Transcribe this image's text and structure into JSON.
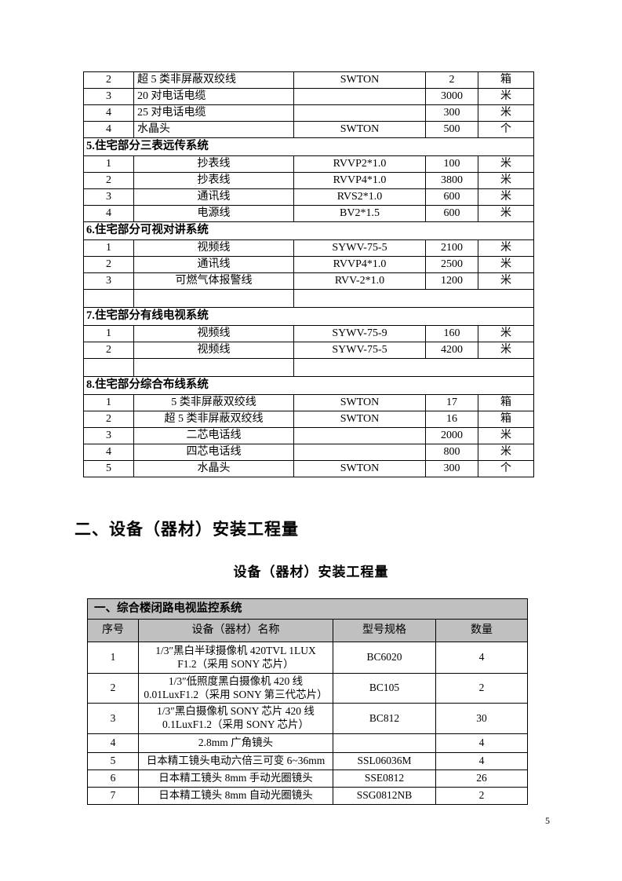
{
  "page": {
    "number": "5"
  },
  "headings": {
    "main": "二、设备（器材）安装工程量",
    "caption": "设备（器材）安装工程量"
  },
  "table1": {
    "rows": [
      {
        "type": "data",
        "align": "left",
        "no": "2",
        "name": "超 5 类非屏蔽双绞线",
        "model": "SWTON",
        "qty": "2",
        "unit": "箱"
      },
      {
        "type": "data",
        "align": "left",
        "no": "3",
        "name": "20 对电话电缆",
        "model": "",
        "qty": "3000",
        "unit": "米"
      },
      {
        "type": "data",
        "align": "left",
        "no": "4",
        "name": "25 对电话电缆",
        "model": "",
        "qty": "300",
        "unit": "米"
      },
      {
        "type": "data",
        "align": "left",
        "no": "4",
        "name": "水晶头",
        "model": "SWTON",
        "qty": "500",
        "unit": "个"
      },
      {
        "type": "section",
        "label": "5.住宅部分三表远传系统"
      },
      {
        "type": "data",
        "align": "center",
        "no": "1",
        "name": "抄表线",
        "model": "RVVP2*1.0",
        "qty": "100",
        "unit": "米"
      },
      {
        "type": "data",
        "align": "center",
        "no": "2",
        "name": "抄表线",
        "model": "RVVP4*1.0",
        "qty": "3800",
        "unit": "米"
      },
      {
        "type": "data",
        "align": "center",
        "no": "3",
        "name": "通讯线",
        "model": "RVS2*1.0",
        "qty": "600",
        "unit": "米"
      },
      {
        "type": "data",
        "align": "center",
        "no": "4",
        "name": "电源线",
        "model": "BV2*1.5",
        "qty": "600",
        "unit": "米"
      },
      {
        "type": "section",
        "label": "6.住宅部分可视对讲系统"
      },
      {
        "type": "data",
        "align": "center",
        "no": "1",
        "name": "视频线",
        "model": "SYWV-75-5",
        "qty": "2100",
        "unit": "米"
      },
      {
        "type": "data",
        "align": "center",
        "no": "2",
        "name": "通讯线",
        "model": "RVVP4*1.0",
        "qty": "2500",
        "unit": "米"
      },
      {
        "type": "data",
        "align": "center",
        "no": "3",
        "name": "可燃气体报警线",
        "model": "RVV-2*1.0",
        "qty": "1200",
        "unit": "米"
      },
      {
        "type": "empty"
      },
      {
        "type": "section",
        "label": "7.住宅部分有线电视系统"
      },
      {
        "type": "data",
        "align": "center",
        "no": "1",
        "name": "视频线",
        "model": "SYWV-75-9",
        "qty": "160",
        "unit": "米"
      },
      {
        "type": "data",
        "align": "center",
        "no": "2",
        "name": "视频线",
        "model": "SYWV-75-5",
        "qty": "4200",
        "unit": "米"
      },
      {
        "type": "empty"
      },
      {
        "type": "section",
        "label": "8.住宅部分综合布线系统"
      },
      {
        "type": "data",
        "align": "center",
        "no": "1",
        "name": "5 类非屏蔽双绞线",
        "model": "SWTON",
        "qty": "17",
        "unit": "箱"
      },
      {
        "type": "data",
        "align": "center",
        "no": "2",
        "name": "超 5 类非屏蔽双绞线",
        "model": "SWTON",
        "qty": "16",
        "unit": "箱"
      },
      {
        "type": "data",
        "align": "center",
        "no": "3",
        "name": "二芯电话线",
        "model": "",
        "qty": "2000",
        "unit": "米"
      },
      {
        "type": "data",
        "align": "center",
        "no": "4",
        "name": "四芯电话线",
        "model": "",
        "qty": "800",
        "unit": "米"
      },
      {
        "type": "data",
        "align": "center",
        "no": "5",
        "name": "水晶头",
        "model": "SWTON",
        "qty": "300",
        "unit": "个"
      }
    ]
  },
  "table2": {
    "title": "一、综合楼闭路电视监控系统",
    "columns": [
      "序号",
      "设备（器材）名称",
      "型号规格",
      "数量"
    ],
    "rows": [
      {
        "no": "1",
        "name": "1/3″黑白半球摄像机 420TVL 1LUX\nF1.2（采用 SONY 芯片）",
        "model": "BC6020",
        "qty": "4"
      },
      {
        "no": "2",
        "name": "1/3″低照度黑白摄像机 420 线\n0.01LuxF1.2（采用 SONY 第三代芯片）",
        "model": "BC105",
        "qty": "2"
      },
      {
        "no": "3",
        "name": "1/3″黑白摄像机 SONY 芯片 420 线\n0.1LuxF1.2（采用 SONY 芯片）",
        "model": "BC812",
        "qty": "30"
      },
      {
        "no": "4",
        "name": "2.8mm 广角镜头",
        "model": "",
        "qty": "4"
      },
      {
        "no": "5",
        "name": "日本精工镜头电动六倍三可变 6~36mm",
        "model": "SSL06036M",
        "qty": "4"
      },
      {
        "no": "6",
        "name": "日本精工镜头 8mm 手动光圈镜头",
        "model": "SSE0812",
        "qty": "26"
      },
      {
        "no": "7",
        "name": "日本精工镜头 8mm 自动光圈镜头",
        "model": "SSG0812NB",
        "qty": "2"
      }
    ]
  }
}
